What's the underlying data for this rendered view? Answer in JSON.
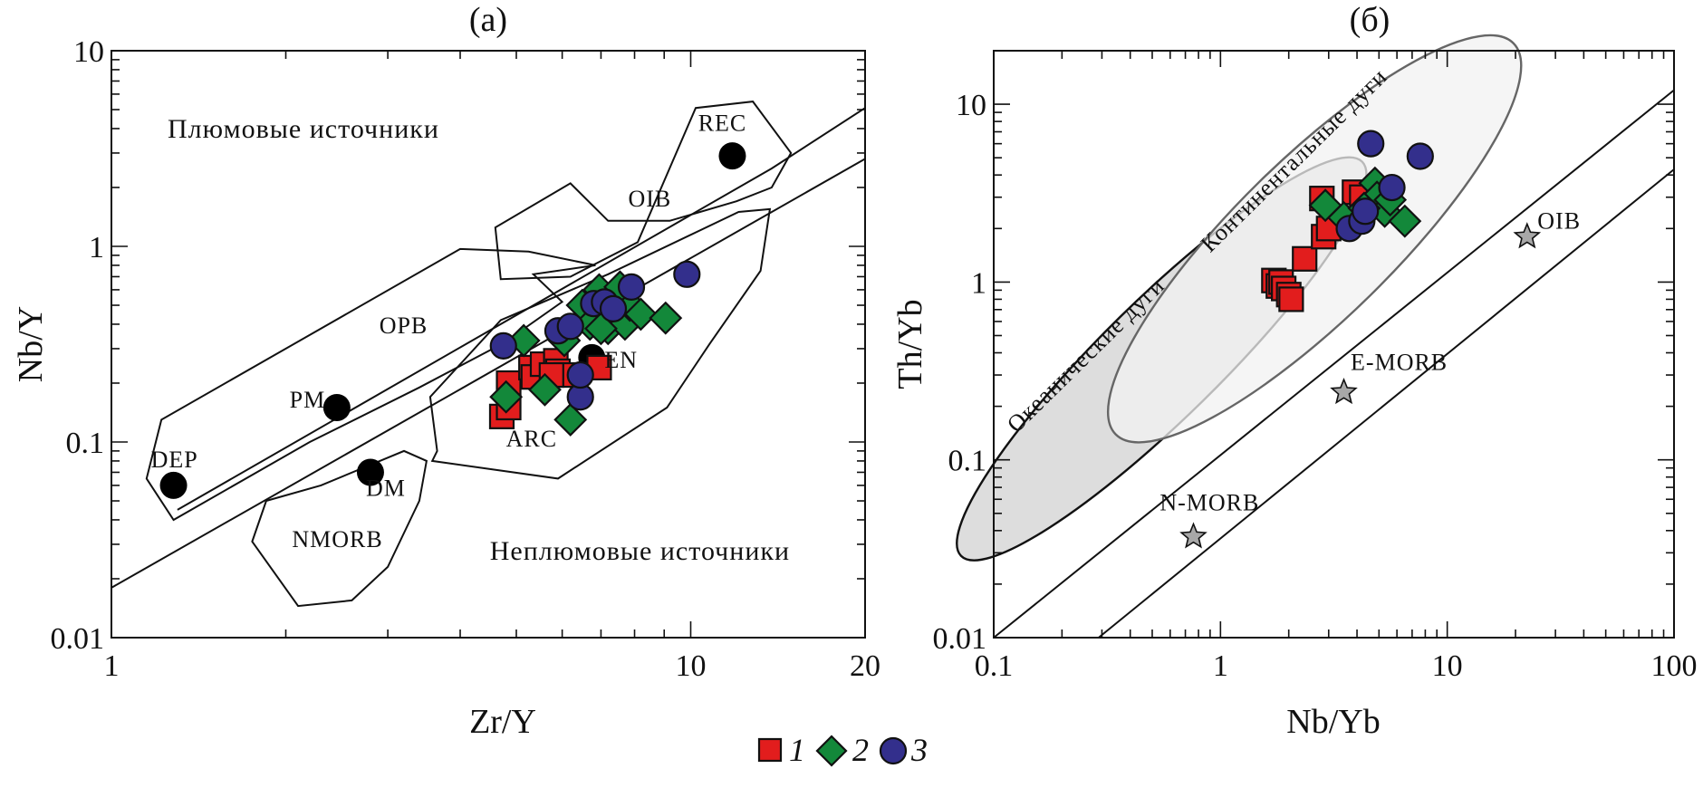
{
  "legend": {
    "items": [
      {
        "label": "1",
        "symbol": "square",
        "color": "#e21d1d"
      },
      {
        "label": "2",
        "symbol": "diamond",
        "color": "#13883a"
      },
      {
        "label": "3",
        "symbol": "circle",
        "color": "#332f8c"
      }
    ]
  },
  "chart_data": [
    {
      "type": "scatter",
      "panel_label": "(a)",
      "xlabel": "Zr/Y",
      "ylabel": "Nb/Y",
      "xscale": "log",
      "yscale": "log",
      "xlim": [
        1,
        20
      ],
      "ylim": [
        0.01,
        10
      ],
      "xticks": [
        {
          "v": 1,
          "label": "1"
        },
        {
          "v": 10,
          "label": "10"
        },
        {
          "v": 20,
          "label": "20"
        }
      ],
      "yticks": [
        {
          "v": 0.01,
          "label": "0.01"
        },
        {
          "v": 0.1,
          "label": "0.1"
        },
        {
          "v": 1,
          "label": "1"
        },
        {
          "v": 10,
          "label": "10"
        }
      ],
      "region_labels": [
        {
          "text": "Плюмовые источники",
          "x": 1.25,
          "y": 3.6
        },
        {
          "text": "Неплюмовые источники",
          "x": 4.5,
          "y": 0.025
        }
      ],
      "field_labels": [
        {
          "text": "OIB",
          "x": 7.8,
          "y": 1.6
        },
        {
          "text": "OPB",
          "x": 2.9,
          "y": 0.36
        },
        {
          "text": "ARC",
          "x": 4.8,
          "y": 0.095
        },
        {
          "text": "NMORB",
          "x": 2.05,
          "y": 0.029
        },
        {
          "text": "EN",
          "x": 7.1,
          "y": 0.24
        },
        {
          "text": "REC",
          "x": 10.3,
          "y": 3.9
        },
        {
          "text": "DEP",
          "x": 1.17,
          "y": 0.074
        },
        {
          "text": "PM",
          "x": 2.03,
          "y": 0.15
        },
        {
          "text": "DM",
          "x": 2.75,
          "y": 0.053
        }
      ],
      "fields": [
        {
          "name": "OIB",
          "points": [
            [
              4.6,
              1.25
            ],
            [
              4.7,
              0.68
            ],
            [
              6.2,
              0.7
            ],
            [
              8.1,
              1.05
            ],
            [
              10.2,
              5.1
            ],
            [
              12.8,
              5.5
            ],
            [
              14.9,
              3.0
            ],
            [
              13.8,
              2.0
            ],
            [
              12.0,
              1.7
            ],
            [
              9.2,
              1.35
            ],
            [
              7.2,
              1.35
            ],
            [
              6.2,
              2.1
            ]
          ]
        },
        {
          "name": "OPB",
          "points": [
            [
              1.22,
              0.13
            ],
            [
              1.15,
              0.065
            ],
            [
              1.28,
              0.04
            ],
            [
              2.2,
              0.1
            ],
            [
              3.4,
              0.19
            ],
            [
              4.75,
              0.32
            ],
            [
              6.0,
              0.52
            ],
            [
              5.35,
              0.72
            ],
            [
              6.85,
              0.8
            ],
            [
              5.25,
              0.94
            ],
            [
              4.0,
              0.97
            ]
          ]
        },
        {
          "name": "ARC",
          "points": [
            [
              3.55,
              0.17
            ],
            [
              3.65,
              0.09
            ],
            [
              3.58,
              0.08
            ],
            [
              5.9,
              0.065
            ],
            [
              9.1,
              0.15
            ],
            [
              10.8,
              0.32
            ],
            [
              13.2,
              0.75
            ],
            [
              13.7,
              1.55
            ],
            [
              12.1,
              1.5
            ],
            [
              7.2,
              0.72
            ],
            [
              4.7,
              0.42
            ]
          ]
        },
        {
          "name": "NMORB",
          "points": [
            [
              1.75,
              0.031
            ],
            [
              2.1,
              0.0145
            ],
            [
              2.6,
              0.0155
            ],
            [
              3.0,
              0.023
            ],
            [
              3.4,
              0.05
            ],
            [
              3.5,
              0.08
            ],
            [
              3.2,
              0.09
            ],
            [
              2.3,
              0.06
            ],
            [
              1.85,
              0.05
            ]
          ]
        }
      ],
      "lines": [
        {
          "name": "plume-divider-upper",
          "points": [
            [
              1.3,
              0.045
            ],
            [
              13.8,
              2.5
            ],
            [
              20,
              5.1
            ]
          ]
        },
        {
          "name": "plume-divider-lower",
          "points": [
            [
              1,
              0.018
            ],
            [
              20,
              2.8
            ]
          ]
        }
      ],
      "reference_points": [
        {
          "name": "REC",
          "x": 11.8,
          "y": 2.9
        },
        {
          "name": "DEP",
          "x": 1.28,
          "y": 0.06
        },
        {
          "name": "PM",
          "x": 2.45,
          "y": 0.15
        },
        {
          "name": "DM",
          "x": 2.8,
          "y": 0.07
        },
        {
          "name": "EN",
          "x": 6.75,
          "y": 0.27
        }
      ],
      "series": [
        {
          "name": "1",
          "symbol": "square",
          "color": "#e21d1d",
          "points": [
            [
              4.72,
              0.135
            ],
            [
              4.85,
              0.15
            ],
            [
              4.85,
              0.2
            ],
            [
              5.3,
              0.24
            ],
            [
              5.35,
              0.215
            ],
            [
              5.55,
              0.25
            ],
            [
              5.85,
              0.26
            ],
            [
              5.9,
              0.23
            ],
            [
              6.1,
              0.22
            ],
            [
              6.95,
              0.24
            ],
            [
              5.75,
              0.22
            ]
          ]
        },
        {
          "name": "2",
          "symbol": "diamond",
          "color": "#13883a",
          "points": [
            [
              4.8,
              0.17
            ],
            [
              5.15,
              0.33
            ],
            [
              5.6,
              0.185
            ],
            [
              6.05,
              0.33
            ],
            [
              6.2,
              0.13
            ],
            [
              6.5,
              0.5
            ],
            [
              6.7,
              0.4
            ],
            [
              6.95,
              0.6
            ],
            [
              7.2,
              0.38
            ],
            [
              7.4,
              0.45
            ],
            [
              7.6,
              0.55
            ],
            [
              7.7,
              0.4
            ],
            [
              7.85,
              0.5
            ],
            [
              8.2,
              0.45
            ],
            [
              7.55,
              0.62
            ],
            [
              9.05,
              0.43
            ],
            [
              7.0,
              0.38
            ]
          ]
        },
        {
          "name": "3",
          "symbol": "circle",
          "color": "#332f8c",
          "points": [
            [
              4.75,
              0.31
            ],
            [
              5.9,
              0.37
            ],
            [
              6.2,
              0.39
            ],
            [
              6.45,
              0.17
            ],
            [
              6.45,
              0.22
            ],
            [
              6.8,
              0.51
            ],
            [
              7.1,
              0.52
            ],
            [
              7.35,
              0.48
            ],
            [
              7.9,
              0.62
            ],
            [
              9.85,
              0.72
            ]
          ]
        }
      ]
    },
    {
      "type": "scatter",
      "panel_label": "(б)",
      "xlabel": "Nb/Yb",
      "ylabel": "Th/Yb",
      "xscale": "log",
      "yscale": "log",
      "xlim": [
        0.1,
        100
      ],
      "ylim": [
        0.01,
        20
      ],
      "xticks": [
        {
          "v": 0.1,
          "label": "0.1"
        },
        {
          "v": 1,
          "label": "1"
        },
        {
          "v": 10,
          "label": "10"
        },
        {
          "v": 100,
          "label": "100"
        }
      ],
      "yticks": [
        {
          "v": 0.01,
          "label": "0.01"
        },
        {
          "v": 0.1,
          "label": "0.1"
        },
        {
          "v": 1,
          "label": "1"
        },
        {
          "v": 10,
          "label": "10"
        }
      ],
      "arc_fields": [
        {
          "name": "Океанические дуги",
          "center": [
            0.55,
            0.37
          ],
          "semi_axes_decades": [
            1.24,
            0.26
          ],
          "angle_deg": 44.5,
          "fill": "#dddddd",
          "stroke": "#111111"
        },
        {
          "name": "Континентальные дуги",
          "center": [
            2.6,
            1.75
          ],
          "semi_axes_decades": [
            1.23,
            0.35
          ],
          "angle_deg": 44.5,
          "fill": "#f2f2f2",
          "stroke": "#666666"
        }
      ],
      "arc_labels": [
        {
          "text": "Океанические дуги",
          "x": 0.126,
          "y": 0.14
        },
        {
          "text": "Континентальные дуги",
          "x": 0.9,
          "y": 1.45
        }
      ],
      "mantle_array": [
        {
          "name": "upper",
          "points": [
            [
              0.1,
              0.01
            ],
            [
              100,
              12
            ]
          ]
        },
        {
          "name": "lower",
          "points": [
            [
              0.29,
              0.01
            ],
            [
              100,
              4.3
            ]
          ]
        }
      ],
      "reference_points": [
        {
          "name": "N-MORB",
          "x": 0.76,
          "y": 0.037
        },
        {
          "name": "E-MORB",
          "x": 3.5,
          "y": 0.24
        },
        {
          "name": "OIB",
          "x": 22.5,
          "y": 1.8
        }
      ],
      "reference_labels": [
        {
          "text": "N-MORB",
          "x": 0.54,
          "y": 0.052
        },
        {
          "text": "E-MORB",
          "x": 3.75,
          "y": 0.32
        },
        {
          "text": "OIB",
          "x": 25,
          "y": 2.0
        }
      ],
      "series": [
        {
          "name": "1",
          "symbol": "square",
          "color": "#e21d1d",
          "points": [
            [
              1.72,
              1.02
            ],
            [
              1.8,
              0.95
            ],
            [
              1.85,
              1.0
            ],
            [
              1.9,
              0.92
            ],
            [
              2.0,
              0.85
            ],
            [
              2.05,
              0.8
            ],
            [
              2.35,
              1.35
            ],
            [
              2.85,
              1.8
            ],
            [
              3.0,
              2.0
            ],
            [
              2.8,
              2.95
            ],
            [
              3.9,
              3.2
            ],
            [
              4.2,
              3.0
            ]
          ]
        },
        {
          "name": "2",
          "symbol": "diamond",
          "color": "#13883a",
          "points": [
            [
              2.9,
              2.7
            ],
            [
              3.5,
              2.3
            ],
            [
              4.5,
              2.7
            ],
            [
              4.8,
              3.6
            ],
            [
              4.9,
              3.0
            ],
            [
              5.3,
              2.5
            ],
            [
              6.5,
              2.2
            ],
            [
              4.3,
              2.6
            ],
            [
              5.6,
              2.9
            ]
          ]
        },
        {
          "name": "3",
          "symbol": "circle",
          "color": "#332f8c",
          "points": [
            [
              3.7,
              2.0
            ],
            [
              4.2,
              2.2
            ],
            [
              4.35,
              2.5
            ],
            [
              4.6,
              6.0
            ],
            [
              5.7,
              3.4
            ],
            [
              7.6,
              5.1
            ]
          ]
        }
      ]
    }
  ]
}
